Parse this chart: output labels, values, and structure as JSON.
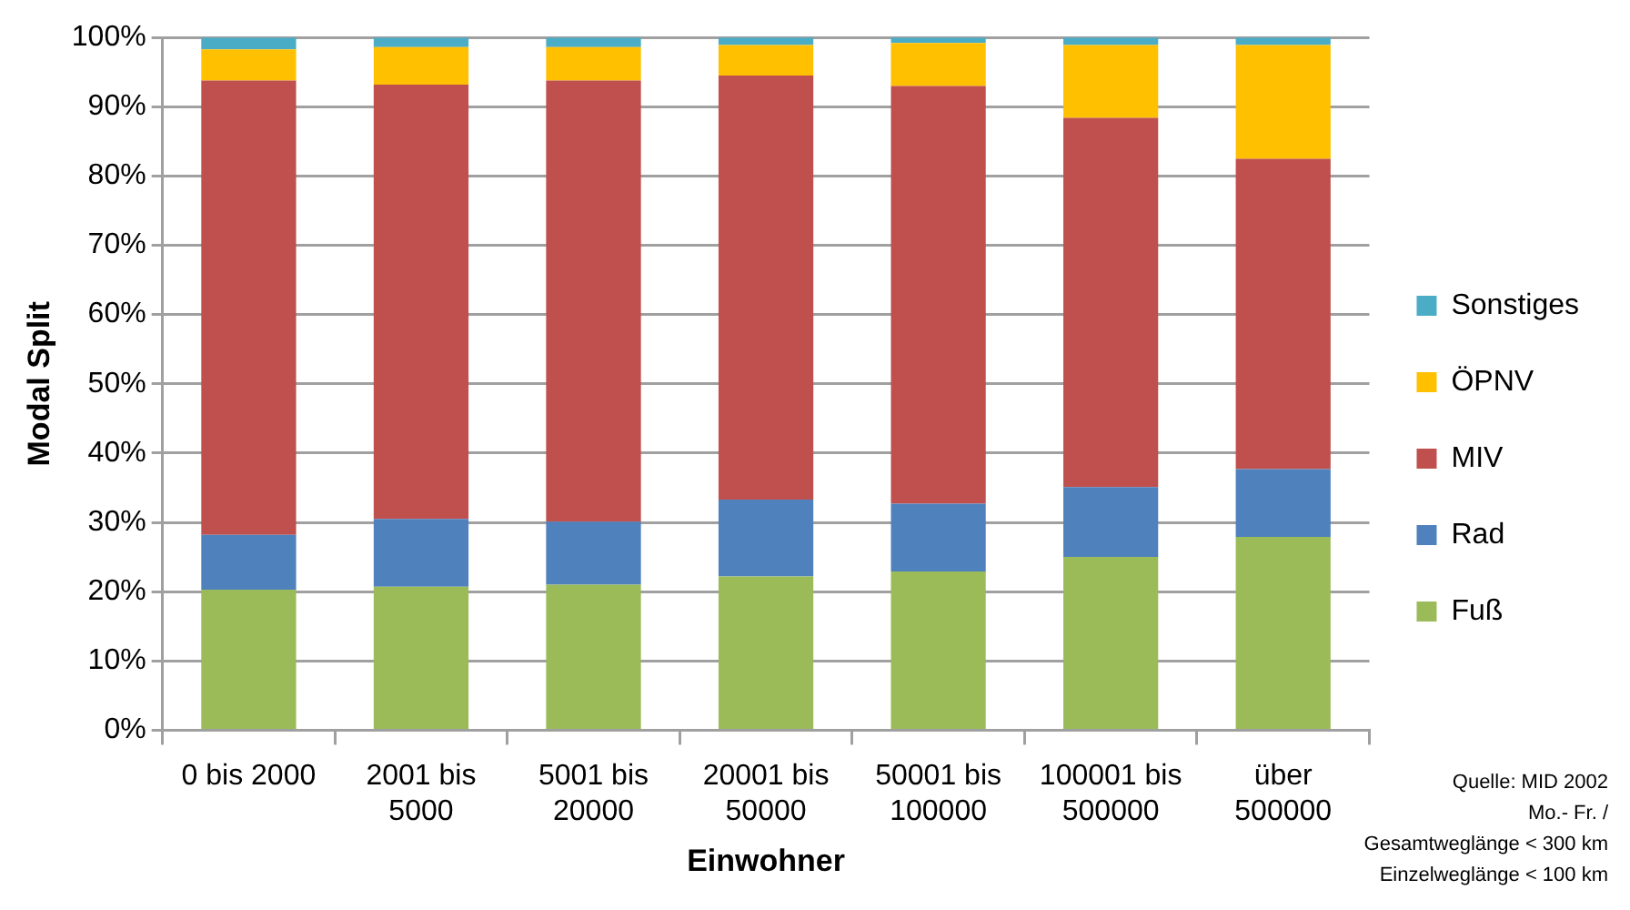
{
  "chart_data": {
    "type": "bar",
    "stacked": true,
    "xlabel": "Einwohner",
    "ylabel": "Modal Split",
    "categories": [
      "0 bis 2000",
      "2001 bis 5000",
      "5001 bis 20000",
      "20001 bis 50000",
      "50001 bis 100000",
      "100001 bis 500000",
      "über 500000"
    ],
    "series": [
      {
        "name": "Fuß",
        "color": "#9bbb59",
        "values": [
          20.3,
          20.7,
          21.0,
          22.2,
          22.9,
          25.0,
          27.9
        ]
      },
      {
        "name": "Rad",
        "color": "#4f81bd",
        "values": [
          7.9,
          9.8,
          9.1,
          11.1,
          9.8,
          10.1,
          9.8
        ]
      },
      {
        "name": "MIV",
        "color": "#c0504d",
        "values": [
          65.6,
          62.7,
          63.7,
          61.2,
          60.3,
          53.3,
          44.8
        ]
      },
      {
        "name": "ÖPNV",
        "color": "#ffc000",
        "values": [
          4.5,
          5.4,
          4.8,
          4.4,
          6.2,
          10.5,
          16.4
        ]
      },
      {
        "name": "Sonstiges",
        "color": "#4bacc6",
        "values": [
          1.7,
          1.4,
          1.4,
          1.1,
          0.8,
          1.1,
          1.1
        ]
      }
    ],
    "ylim": [
      0,
      100
    ],
    "yticks": [
      {
        "value": 0,
        "label": "0%"
      },
      {
        "value": 10,
        "label": "10%"
      },
      {
        "value": 20,
        "label": "20%"
      },
      {
        "value": 30,
        "label": "30%"
      },
      {
        "value": 40,
        "label": "40%"
      },
      {
        "value": 50,
        "label": "50%"
      },
      {
        "value": 60,
        "label": "60%"
      },
      {
        "value": 70,
        "label": "70%"
      },
      {
        "value": 80,
        "label": "80%"
      },
      {
        "value": 90,
        "label": "90%"
      },
      {
        "value": 100,
        "label": "100%"
      }
    ],
    "grid": "y",
    "legend": "right",
    "annotations": [
      "Quelle: MID 2002",
      "Mo.- Fr. /",
      "Gesamtweglänge < 300 km",
      "Einzelweglänge < 100 km"
    ]
  }
}
